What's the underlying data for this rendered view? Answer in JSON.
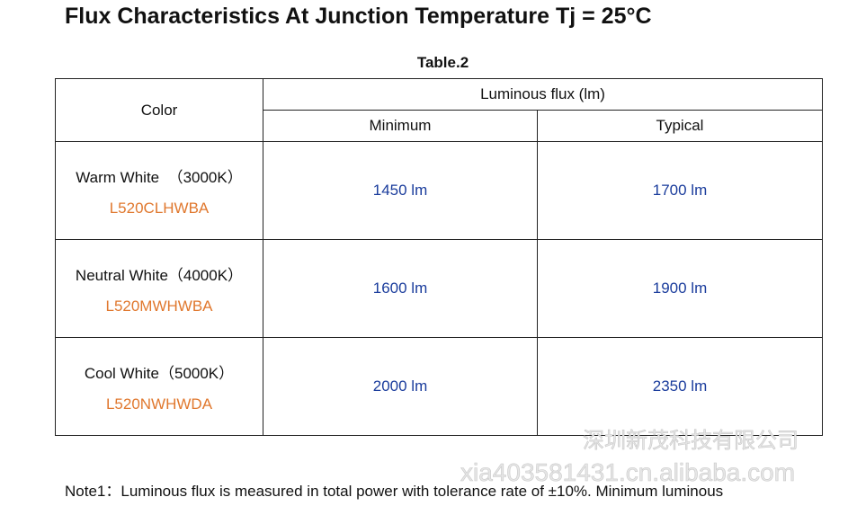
{
  "title": "Flux Characteristics At Junction Temperature Tj = 25°C",
  "table": {
    "caption": "Table.2",
    "header": {
      "color": "Color",
      "flux": "Luminous flux (lm)",
      "min": "Minimum",
      "typ": "Typical"
    },
    "rows": [
      {
        "color": "Warm White  （3000K）",
        "part": "L520CLHWBA",
        "min": "1450 lm",
        "typ": "1700 lm"
      },
      {
        "color": "Neutral White（4000K）",
        "part": "L520MWHWBA",
        "min": "1600 lm",
        "typ": "1900 lm"
      },
      {
        "color": "Cool White（5000K）",
        "part": "L520NWHWDA",
        "min": "2000 lm",
        "typ": "2350 lm"
      }
    ]
  },
  "watermark": {
    "company": "深圳新茂科技有限公司",
    "site": "xia403581431.cn.alibaba.com"
  },
  "note": "Note1：Luminous flux is measured in total power with tolerance rate of ±10%. Minimum luminous"
}
